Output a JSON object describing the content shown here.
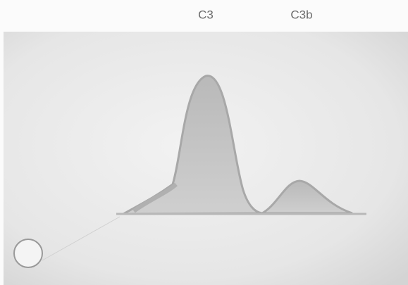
{
  "labels": [
    "C3",
    "C3b"
  ]
}
